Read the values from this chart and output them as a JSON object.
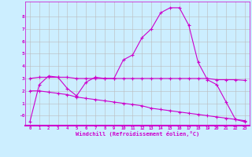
{
  "xlabel": "Windchill (Refroidissement éolien,°C)",
  "bg_color": "#cceeff",
  "line_color": "#cc00cc",
  "grid_color": "#bbbbbb",
  "x_hours": [
    0,
    1,
    2,
    3,
    4,
    5,
    6,
    7,
    8,
    9,
    10,
    11,
    12,
    13,
    14,
    15,
    16,
    17,
    18,
    19,
    20,
    21,
    22,
    23
  ],
  "line1_y": [
    -0.5,
    2.5,
    3.2,
    3.1,
    2.2,
    1.6,
    2.7,
    3.1,
    3.0,
    3.0,
    4.5,
    4.9,
    6.3,
    7.0,
    8.3,
    8.7,
    8.7,
    7.3,
    4.3,
    2.9,
    2.5,
    1.1,
    -0.3,
    -0.5
  ],
  "line2_y": [
    3.0,
    3.1,
    3.1,
    3.1,
    3.1,
    3.0,
    3.0,
    3.0,
    3.0,
    3.0,
    3.0,
    3.0,
    3.0,
    3.0,
    3.0,
    3.0,
    3.0,
    3.0,
    3.0,
    3.0,
    2.9,
    2.9,
    2.9,
    2.85
  ],
  "line3_y": [
    2.0,
    2.0,
    1.9,
    1.8,
    1.7,
    1.5,
    1.4,
    1.3,
    1.2,
    1.1,
    1.0,
    0.9,
    0.8,
    0.6,
    0.5,
    0.4,
    0.3,
    0.2,
    0.1,
    0.0,
    -0.1,
    -0.2,
    -0.3,
    -0.4
  ],
  "ylim": [
    -0.8,
    9.2
  ],
  "xlim": [
    -0.5,
    23.5
  ],
  "yticks": [
    0,
    1,
    2,
    3,
    4,
    5,
    6,
    7,
    8
  ],
  "xticks": [
    0,
    1,
    2,
    3,
    4,
    5,
    6,
    7,
    8,
    9,
    10,
    11,
    12,
    13,
    14,
    15,
    16,
    17,
    18,
    19,
    20,
    21,
    22,
    23
  ]
}
